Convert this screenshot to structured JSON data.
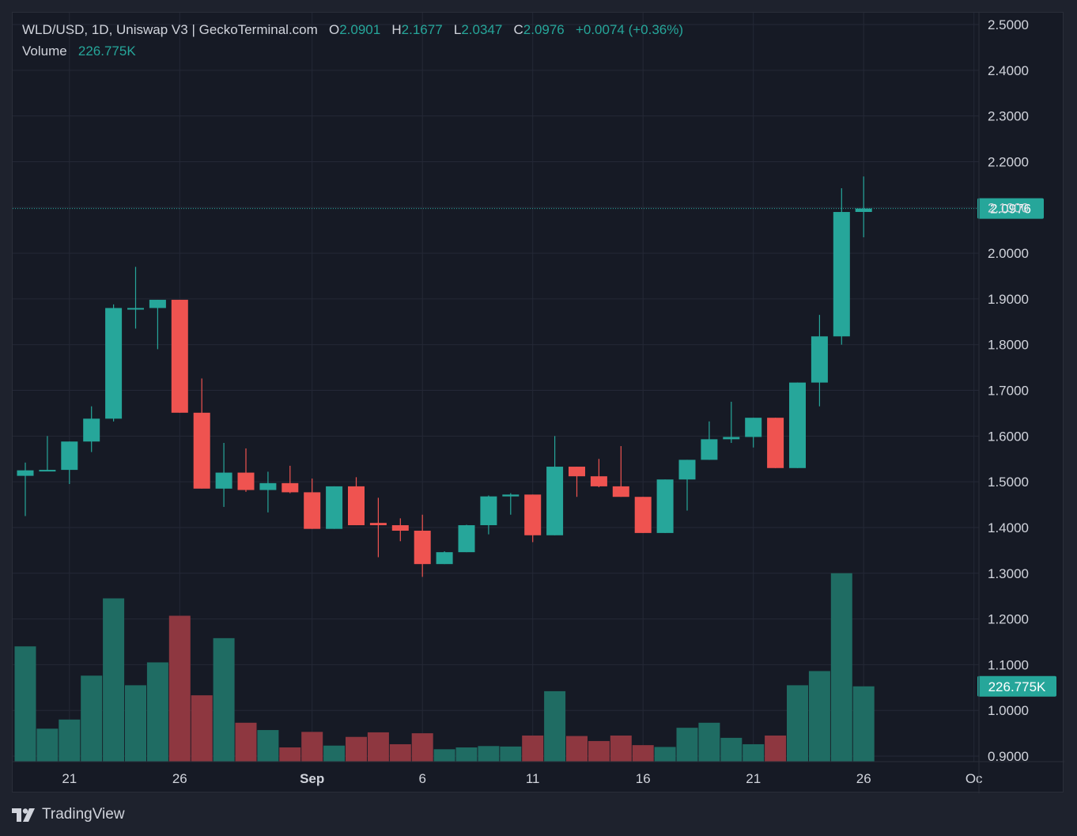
{
  "legend": {
    "symbol": "WLD/USD, 1D, Uniswap V3 | GeckoTerminal.com",
    "o_label": "O",
    "o_value": "2.0901",
    "h_label": "H",
    "h_value": "2.1677",
    "l_label": "L",
    "l_value": "2.0347",
    "c_label": "C",
    "c_value": "2.0976",
    "change": "+0.0074 (+0.36%)",
    "volume_label": "Volume",
    "volume_value": "226.775K"
  },
  "branding": {
    "logo_text": "TradingView"
  },
  "colors": {
    "up": "#26a69a",
    "down": "#ef5350",
    "vol_up": "#1f6c63",
    "vol_down": "#8e3740",
    "background": "#161a25",
    "grid": "#242836",
    "text": "#d1d4dc"
  },
  "chart_data": {
    "type": "candlestick",
    "price_axis": {
      "range": [
        0.9,
        2.5
      ],
      "ticks": [
        "2.5000",
        "2.4000",
        "2.3000",
        "2.2000",
        "2.1000",
        "2.0000",
        "1.9000",
        "1.8000",
        "1.7000",
        "1.6000",
        "1.5000",
        "1.4000",
        "1.3000",
        "1.2000",
        "1.1000",
        "1.0000",
        "0.9000"
      ],
      "last_price_label": "2.0976",
      "last_price": 2.0976,
      "volume_label": "226.775K",
      "volume_label_at": 1.0526
    },
    "time_axis": {
      "labels": [
        {
          "text": "21",
          "day": 21,
          "month": "Aug"
        },
        {
          "text": "26",
          "day": 26,
          "month": "Aug"
        },
        {
          "text": "Sep",
          "day": 1,
          "month": "Sep"
        },
        {
          "text": "6",
          "day": 6,
          "month": "Sep"
        },
        {
          "text": "11",
          "day": 11,
          "month": "Sep"
        },
        {
          "text": "16",
          "day": 16,
          "month": "Sep"
        },
        {
          "text": "21",
          "day": 21,
          "month": "Sep"
        },
        {
          "text": "26",
          "day": 26,
          "month": "Sep"
        },
        {
          "text": "Oc",
          "day": 1,
          "month": "Oct"
        }
      ]
    },
    "volume_scale_max": 1.3,
    "candles": [
      {
        "date": "Aug 19",
        "open": 1.513,
        "high": 1.542,
        "low": 1.425,
        "close": 1.525,
        "vol": 1.14
      },
      {
        "date": "Aug 20",
        "open": 1.524,
        "high": 1.6,
        "low": 1.524,
        "close": 1.526,
        "vol": 0.96
      },
      {
        "date": "Aug 21",
        "open": 1.526,
        "high": 1.588,
        "low": 1.495,
        "close": 1.588,
        "vol": 0.98
      },
      {
        "date": "Aug 22",
        "open": 1.588,
        "high": 1.665,
        "low": 1.565,
        "close": 1.638,
        "vol": 1.076
      },
      {
        "date": "Aug 23",
        "open": 1.638,
        "high": 1.888,
        "low": 1.632,
        "close": 1.88,
        "vol": 1.245
      },
      {
        "date": "Aug 24",
        "open": 1.88,
        "high": 1.97,
        "low": 1.835,
        "close": 1.88,
        "vol": 1.055
      },
      {
        "date": "Aug 25",
        "open": 1.88,
        "high": 1.898,
        "low": 1.79,
        "close": 1.898,
        "vol": 1.105
      },
      {
        "date": "Aug 26",
        "open": 1.898,
        "high": 1.898,
        "low": 1.651,
        "close": 1.651,
        "vol": 1.207
      },
      {
        "date": "Aug 27",
        "open": 1.651,
        "high": 1.726,
        "low": 1.485,
        "close": 1.485,
        "vol": 1.033
      },
      {
        "date": "Aug 28",
        "open": 1.485,
        "high": 1.585,
        "low": 1.445,
        "close": 1.52,
        "vol": 1.158
      },
      {
        "date": "Aug 29",
        "open": 1.52,
        "high": 1.573,
        "low": 1.478,
        "close": 1.482,
        "vol": 0.973
      },
      {
        "date": "Aug 30",
        "open": 1.482,
        "high": 1.522,
        "low": 1.433,
        "close": 1.497,
        "vol": 0.957
      },
      {
        "date": "Aug 31",
        "open": 1.497,
        "high": 1.535,
        "low": 1.475,
        "close": 1.477,
        "vol": 0.919
      },
      {
        "date": "Sep 1",
        "open": 1.477,
        "high": 1.507,
        "low": 1.397,
        "close": 1.397,
        "vol": 0.953
      },
      {
        "date": "Sep 2",
        "open": 1.397,
        "high": 1.49,
        "low": 1.397,
        "close": 1.49,
        "vol": 0.923
      },
      {
        "date": "Sep 3",
        "open": 1.49,
        "high": 1.51,
        "low": 1.405,
        "close": 1.405,
        "vol": 0.942
      },
      {
        "date": "Sep 4",
        "open": 1.41,
        "high": 1.465,
        "low": 1.335,
        "close": 1.405,
        "vol": 0.952
      },
      {
        "date": "Sep 5",
        "open": 1.405,
        "high": 1.42,
        "low": 1.37,
        "close": 1.393,
        "vol": 0.926
      },
      {
        "date": "Sep 6",
        "open": 1.393,
        "high": 1.428,
        "low": 1.292,
        "close": 1.32,
        "vol": 0.95
      },
      {
        "date": "Sep 7",
        "open": 1.32,
        "high": 1.348,
        "low": 1.32,
        "close": 1.346,
        "vol": 0.915
      },
      {
        "date": "Sep 8",
        "open": 1.346,
        "high": 1.406,
        "low": 1.346,
        "close": 1.405,
        "vol": 0.919
      },
      {
        "date": "Sep 9",
        "open": 1.405,
        "high": 1.47,
        "low": 1.385,
        "close": 1.468,
        "vol": 0.922
      },
      {
        "date": "Sep 10",
        "open": 1.468,
        "high": 1.475,
        "low": 1.428,
        "close": 1.472,
        "vol": 0.921
      },
      {
        "date": "Sep 11",
        "open": 1.472,
        "high": 1.472,
        "low": 1.368,
        "close": 1.383,
        "vol": 0.945
      },
      {
        "date": "Sep 12",
        "open": 1.383,
        "high": 1.6,
        "low": 1.383,
        "close": 1.533,
        "vol": 1.042
      },
      {
        "date": "Sep 13",
        "open": 1.533,
        "high": 1.533,
        "low": 1.467,
        "close": 1.512,
        "vol": 0.944
      },
      {
        "date": "Sep 14",
        "open": 1.512,
        "high": 1.55,
        "low": 1.488,
        "close": 1.49,
        "vol": 0.933
      },
      {
        "date": "Sep 15",
        "open": 1.49,
        "high": 1.578,
        "low": 1.467,
        "close": 1.467,
        "vol": 0.945
      },
      {
        "date": "Sep 16",
        "open": 1.467,
        "high": 1.467,
        "low": 1.388,
        "close": 1.388,
        "vol": 0.924
      },
      {
        "date": "Sep 17",
        "open": 1.388,
        "high": 1.505,
        "low": 1.388,
        "close": 1.505,
        "vol": 0.92
      },
      {
        "date": "Sep 18",
        "open": 1.505,
        "high": 1.548,
        "low": 1.437,
        "close": 1.548,
        "vol": 0.962
      },
      {
        "date": "Sep 19",
        "open": 1.548,
        "high": 1.632,
        "low": 1.548,
        "close": 1.593,
        "vol": 0.973
      },
      {
        "date": "Sep 20",
        "open": 1.593,
        "high": 1.675,
        "low": 1.585,
        "close": 1.598,
        "vol": 0.94
      },
      {
        "date": "Sep 21",
        "open": 1.598,
        "high": 1.64,
        "low": 1.575,
        "close": 1.64,
        "vol": 0.926
      },
      {
        "date": "Sep 22",
        "open": 1.64,
        "high": 1.64,
        "low": 1.53,
        "close": 1.53,
        "vol": 0.945
      },
      {
        "date": "Sep 23",
        "open": 1.53,
        "high": 1.717,
        "low": 1.53,
        "close": 1.717,
        "vol": 1.055
      },
      {
        "date": "Sep 24",
        "open": 1.717,
        "high": 1.865,
        "low": 1.665,
        "close": 1.818,
        "vol": 1.086
      },
      {
        "date": "Sep 25",
        "open": 1.818,
        "high": 2.142,
        "low": 1.8,
        "close": 2.09,
        "vol": 1.3
      },
      {
        "date": "Sep 26",
        "open": 2.0901,
        "high": 2.1677,
        "low": 2.0347,
        "close": 2.0976,
        "vol": 1.0526
      }
    ]
  }
}
